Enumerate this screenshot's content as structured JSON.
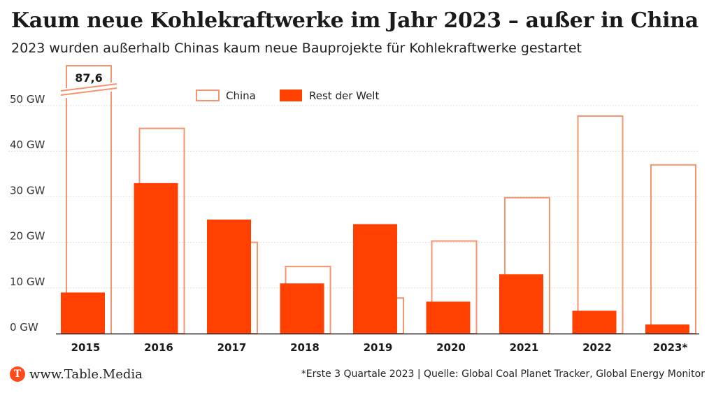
{
  "title": "Kaum neue Kohlekraftwerke im Jahr 2023 – außer in China",
  "subtitle": "2023 wurden außerhalb Chinas kaum neue Bauprojekte für Kohlekraftwerke gestartet",
  "footer": {
    "brand_icon": "table-media-logo-icon",
    "brand_letter": "T",
    "brand": "www.Table.Media",
    "source": "*Erste 3 Quartale 2023 | Quelle: Global Coal Planet Tracker, Global Energy Monitor"
  },
  "colors": {
    "china": "#f5946e",
    "rest": "#ff4000",
    "grid": "#dddddd",
    "text": "#1a1a1a"
  },
  "chart_data": {
    "type": "bar",
    "categories": [
      "2015",
      "2016",
      "2017",
      "2018",
      "2019",
      "2020",
      "2021",
      "2022",
      "2023*"
    ],
    "series": [
      {
        "name": "China",
        "style": "outline",
        "values": [
          87.6,
          45,
          20,
          14.7,
          7.8,
          20.3,
          29.8,
          47.7,
          37
        ]
      },
      {
        "name": "Rest der Welt",
        "style": "filled",
        "values": [
          9,
          33,
          25,
          11,
          24,
          7,
          13,
          5,
          2
        ]
      }
    ],
    "ylim": [
      0,
      50
    ],
    "yticks": [
      0,
      10,
      20,
      30,
      40,
      50
    ],
    "ytick_labels": [
      "0 GW",
      "10 GW",
      "20 GW",
      "30 GW",
      "40 GW",
      "50 GW"
    ],
    "axis_break": {
      "category": "2015",
      "label": "87,6"
    },
    "legend": {
      "placement": "top-center",
      "items": [
        "China",
        "Rest der Welt"
      ]
    },
    "grid": true
  }
}
